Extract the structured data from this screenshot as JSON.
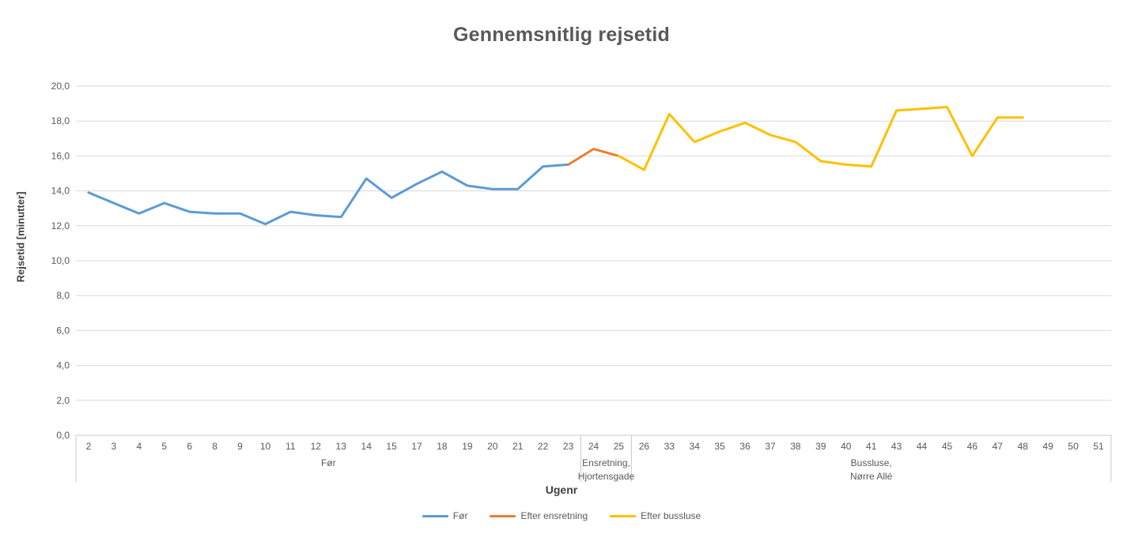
{
  "chart_data": {
    "type": "line",
    "title": "Gennemsnitlig rejsetid",
    "xlabel": "Ugenr",
    "ylabel": "Rejsetid [minutter]",
    "ylim": [
      0,
      20
    ],
    "y_tick_step": 2,
    "y_tick_labels": [
      "0,0",
      "2,0",
      "4,0",
      "6,0",
      "8,0",
      "10,0",
      "12,0",
      "14,0",
      "16,0",
      "18,0",
      "20,0"
    ],
    "grid": true,
    "legend_position": "bottom",
    "categories": [
      "2",
      "3",
      "4",
      "5",
      "6",
      "8",
      "9",
      "10",
      "11",
      "12",
      "13",
      "14",
      "15",
      "17",
      "18",
      "19",
      "20",
      "21",
      "22",
      "23",
      "24",
      "25",
      "26",
      "33",
      "34",
      "35",
      "36",
      "37",
      "38",
      "39",
      "40",
      "41",
      "43",
      "44",
      "45",
      "46",
      "47",
      "48",
      "49",
      "50",
      "51"
    ],
    "category_groups": [
      {
        "label": "Før",
        "lines": [
          "Før"
        ],
        "span": 20
      },
      {
        "label": "Ensretning, Hjortensgade",
        "lines": [
          "Ensretning,",
          "Hjortensgade"
        ],
        "span": 2
      },
      {
        "label": "Bussluse, Nørre Allé",
        "lines": [
          "Bussluse,",
          "Nørre Allé"
        ],
        "span": 19
      }
    ],
    "series": [
      {
        "name": "Før",
        "color": "#5B9BD5",
        "values": [
          13.9,
          13.3,
          12.7,
          13.3,
          12.8,
          12.7,
          12.7,
          12.1,
          12.8,
          12.6,
          12.5,
          14.7,
          13.6,
          14.4,
          15.1,
          14.3,
          14.1,
          14.1,
          15.4,
          15.5,
          null,
          null,
          null,
          null,
          null,
          null,
          null,
          null,
          null,
          null,
          null,
          null,
          null,
          null,
          null,
          null,
          null,
          null,
          null,
          null,
          null
        ]
      },
      {
        "name": "Efter ensretning",
        "color": "#ED7D31",
        "values": [
          null,
          null,
          null,
          null,
          null,
          null,
          null,
          null,
          null,
          null,
          null,
          null,
          null,
          null,
          null,
          null,
          null,
          null,
          null,
          15.5,
          16.4,
          16.0,
          null,
          null,
          null,
          null,
          null,
          null,
          null,
          null,
          null,
          null,
          null,
          null,
          null,
          null,
          null,
          null,
          null,
          null,
          null
        ]
      },
      {
        "name": "Efter bussluse",
        "color": "#FFC000",
        "values": [
          null,
          null,
          null,
          null,
          null,
          null,
          null,
          null,
          null,
          null,
          null,
          null,
          null,
          null,
          null,
          null,
          null,
          null,
          null,
          null,
          null,
          16.0,
          15.2,
          18.4,
          16.8,
          17.4,
          17.9,
          17.2,
          16.8,
          15.7,
          15.5,
          15.4,
          18.6,
          18.7,
          18.8,
          16.0,
          18.2,
          18.2,
          null,
          null,
          null
        ]
      }
    ]
  },
  "colors": {
    "title": "#595959",
    "axis_title": "#3F3F3F",
    "tick_label": "#595959",
    "gridline": "#D9D9D9",
    "axis_line": "#C9C9C9",
    "background": "#FFFFFF"
  }
}
